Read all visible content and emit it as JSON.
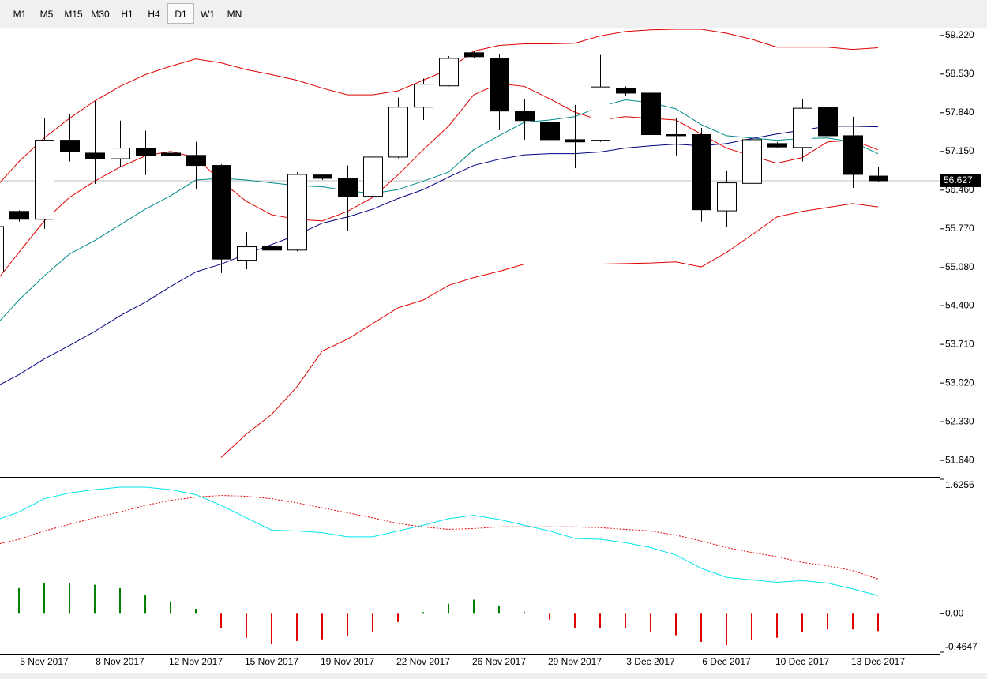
{
  "toolbar": {
    "timeframes": [
      "M1",
      "M5",
      "M15",
      "M30",
      "H1",
      "H4",
      "D1",
      "W1",
      "MN"
    ],
    "active": 6
  },
  "chart_data": [
    {
      "type": "candlestick",
      "categories": [
        null,
        null,
        "5 Nov 2017",
        null,
        null,
        "8 Nov 2017",
        null,
        null,
        "12 Nov 2017",
        null,
        null,
        "15 Nov 2017",
        null,
        null,
        "19 Nov 2017",
        null,
        null,
        "22 Nov 2017",
        null,
        null,
        "26 Nov 2017",
        null,
        null,
        "29 Nov 2017",
        null,
        null,
        "3 Dec 2017",
        null,
        null,
        "6 Dec 2017",
        null,
        null,
        "10 Dec 2017",
        null,
        null,
        "13 Dec 2017"
      ],
      "open": [
        55.0,
        56.08,
        55.94,
        57.35,
        57.12,
        57.02,
        57.21,
        57.12,
        57.08,
        56.9,
        55.21,
        55.45,
        55.39,
        56.73,
        56.67,
        56.35,
        57.05,
        57.94,
        58.32,
        58.91,
        58.81,
        57.87,
        57.67,
        57.36,
        57.35,
        58.28,
        58.19,
        57.45,
        57.45,
        56.09,
        56.58,
        57.29,
        57.22,
        57.94,
        57.43,
        56.71
      ],
      "high": [
        55.9,
        56.1,
        57.74,
        57.81,
        58.05,
        57.7,
        57.52,
        57.16,
        57.32,
        56.92,
        55.71,
        55.77,
        56.78,
        56.74,
        56.9,
        57.18,
        58.11,
        58.45,
        58.85,
        58.95,
        58.88,
        58.09,
        58.3,
        57.98,
        58.87,
        58.31,
        58.23,
        57.74,
        57.57,
        56.8,
        57.78,
        57.32,
        58.08,
        58.56,
        57.77,
        56.88
      ],
      "low": [
        54.9,
        55.9,
        55.77,
        56.97,
        56.57,
        56.87,
        56.73,
        57.07,
        56.47,
        54.98,
        55.05,
        55.12,
        55.37,
        56.64,
        55.73,
        56.31,
        57.03,
        57.71,
        58.31,
        58.82,
        57.53,
        57.36,
        56.76,
        56.85,
        57.32,
        58.14,
        57.32,
        57.08,
        55.9,
        55.8,
        56.57,
        57.21,
        56.97,
        56.85,
        56.5,
        56.6
      ],
      "close": [
        55.81,
        55.94,
        57.35,
        57.15,
        57.02,
        57.21,
        57.07,
        57.07,
        56.9,
        55.23,
        55.45,
        55.39,
        56.74,
        56.67,
        56.35,
        57.05,
        57.94,
        58.35,
        58.81,
        58.84,
        57.87,
        57.7,
        57.36,
        57.32,
        58.3,
        58.19,
        57.45,
        57.43,
        56.11,
        56.59,
        57.36,
        57.23,
        57.92,
        57.43,
        56.74,
        56.627
      ],
      "up_color": "#ffffff",
      "down_color": "#000000",
      "series": [
        {
          "color": "#e00000",
          "values": [
            56.47,
            56.97,
            57.39,
            57.74,
            58.05,
            58.31,
            58.52,
            58.67,
            58.8,
            58.73,
            58.61,
            58.52,
            58.42,
            58.28,
            58.16,
            58.16,
            58.23,
            58.42,
            58.61,
            58.94,
            59.04,
            59.07,
            59.07,
            59.08,
            59.21,
            59.29,
            59.32,
            59.33,
            59.33,
            59.26,
            59.15,
            59.01,
            59.01,
            59.01,
            58.97,
            59.0
          ]
        },
        {
          "color": "#e00000",
          "values": [
            54.78,
            55.35,
            55.91,
            56.33,
            56.62,
            56.87,
            57.07,
            57.15,
            57.04,
            56.62,
            56.26,
            56.02,
            55.94,
            55.91,
            56.08,
            56.33,
            56.73,
            57.18,
            57.6,
            58.16,
            58.36,
            58.31,
            58.09,
            57.85,
            57.71,
            57.77,
            57.74,
            57.71,
            57.46,
            57.21,
            57.07,
            56.94,
            57.04,
            57.32,
            57.35,
            57.18
          ]
        },
        {
          "color": "#e00000",
          "values": [
            null,
            null,
            null,
            null,
            null,
            null,
            null,
            null,
            null,
            51.69,
            52.11,
            52.46,
            52.95,
            53.59,
            53.8,
            54.08,
            54.36,
            54.5,
            54.76,
            54.9,
            55.01,
            55.14,
            55.14,
            55.14,
            55.14,
            55.15,
            55.16,
            55.18,
            55.09,
            55.35,
            55.66,
            55.98,
            56.08,
            56.15,
            56.22,
            56.16
          ]
        },
        {
          "color": "#008b8b",
          "values": [
            54.01,
            54.5,
            54.93,
            55.32,
            55.56,
            55.84,
            56.12,
            56.36,
            56.64,
            56.67,
            56.64,
            56.59,
            56.54,
            56.52,
            56.45,
            56.4,
            56.47,
            56.62,
            56.78,
            57.18,
            57.43,
            57.67,
            57.71,
            57.77,
            57.95,
            58.07,
            58.02,
            57.91,
            57.63,
            57.43,
            57.39,
            57.35,
            57.38,
            57.39,
            57.32,
            57.11
          ]
        },
        {
          "color": "#000080",
          "values": [
            52.93,
            53.17,
            53.45,
            53.69,
            53.94,
            54.22,
            54.46,
            54.74,
            55.0,
            55.14,
            55.32,
            55.49,
            55.66,
            55.87,
            55.98,
            56.12,
            56.31,
            56.47,
            56.69,
            56.9,
            57.01,
            57.09,
            57.11,
            57.11,
            57.14,
            57.21,
            57.25,
            57.28,
            57.25,
            57.29,
            57.38,
            57.46,
            57.53,
            57.6,
            57.6,
            57.59
          ]
        }
      ],
      "last_price": 56.627,
      "ylim": [
        51.36,
        59.33
      ],
      "yticks": [
        {
          "value": 51.64,
          "label": "51.640"
        },
        {
          "value": 52.33,
          "label": "52.330"
        },
        {
          "value": 53.02,
          "label": "53.020"
        },
        {
          "value": 53.71,
          "label": "53.710"
        },
        {
          "value": 54.4,
          "label": "54.400"
        },
        {
          "value": 55.08,
          "label": "55.080"
        },
        {
          "value": 55.77,
          "label": "55.770"
        },
        {
          "value": 56.46,
          "label": "56.460"
        },
        {
          "value": 57.15,
          "label": "57.150"
        },
        {
          "value": 57.84,
          "label": "57.840"
        },
        {
          "value": 58.53,
          "label": "58.530"
        },
        {
          "value": 59.22,
          "label": "59.220"
        }
      ]
    },
    {
      "type": "macd",
      "values": [
        null,
        0.31,
        0.375,
        0.375,
        0.35,
        0.31,
        0.23,
        0.15,
        0.06,
        -0.17,
        -0.29,
        -0.37,
        -0.33,
        -0.31,
        -0.27,
        -0.22,
        -0.1,
        0.02,
        0.12,
        0.17,
        0.09,
        0.02,
        -0.07,
        -0.17,
        -0.17,
        -0.17,
        -0.22,
        -0.26,
        -0.34,
        -0.38,
        -0.32,
        -0.29,
        -0.22,
        -0.19,
        -0.19,
        -0.21
      ],
      "up_color": "#008000",
      "down_color": "#e00000",
      "series": [
        {
          "color": "#00e5ee",
          "dashed": false,
          "values": [
            1.12,
            1.23,
            1.39,
            1.46,
            1.5,
            1.53,
            1.53,
            1.5,
            1.44,
            1.31,
            1.16,
            1.01,
            1.0,
            0.98,
            0.93,
            0.93,
            1.0,
            1.07,
            1.15,
            1.19,
            1.14,
            1.07,
            1.0,
            0.91,
            0.9,
            0.86,
            0.8,
            0.71,
            0.55,
            0.44,
            0.41,
            0.38,
            0.4,
            0.37,
            0.3,
            0.22
          ]
        },
        {
          "color": "#e00000",
          "dashed": true,
          "values": [
            0.83,
            0.9,
            1.0,
            1.08,
            1.16,
            1.23,
            1.31,
            1.37,
            1.41,
            1.43,
            1.42,
            1.39,
            1.34,
            1.28,
            1.22,
            1.16,
            1.09,
            1.05,
            1.02,
            1.03,
            1.05,
            1.05,
            1.05,
            1.05,
            1.04,
            1.02,
            1.0,
            0.95,
            0.88,
            0.8,
            0.74,
            0.69,
            0.62,
            0.58,
            0.52,
            0.42
          ]
        }
      ],
      "ylim": [
        -0.4647,
        1.6256
      ],
      "yticks": [
        -0.4647,
        {
          "value": 0,
          "label": "0.00"
        },
        1.6256
      ]
    }
  ]
}
